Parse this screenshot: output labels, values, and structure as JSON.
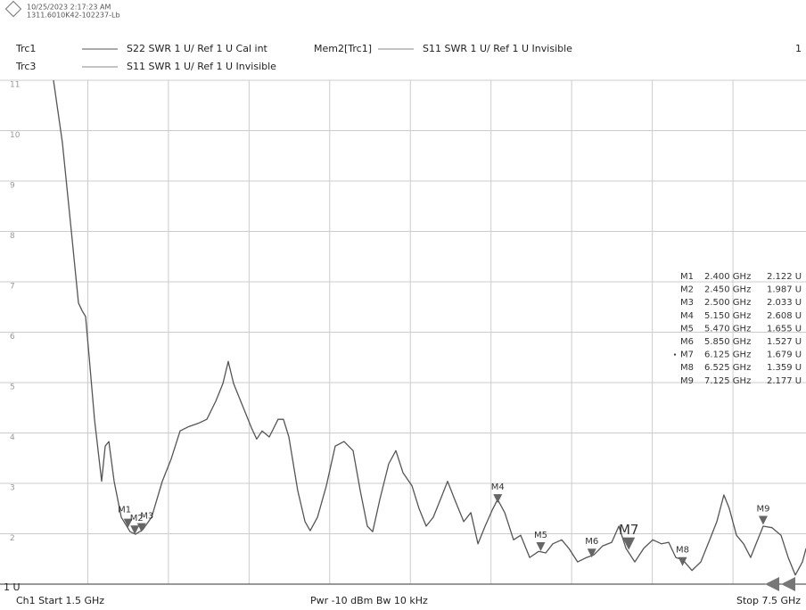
{
  "header": {
    "timestamp": "10/25/2023 2:17:23 AM",
    "device_id": "1311.6010K42-102237-Lb"
  },
  "traces": {
    "trc1_desc": "S22  SWR  1 U/ Ref 1 U  Cal int",
    "mem_name": "Mem2[Trc1]",
    "mem_desc": "S11  SWR  1 U/ Ref 1 U  Invisible",
    "channel_index": "1",
    "trc3_name": "Trc3",
    "trc3_desc": "S11  SWR  1 U/ Ref 1 U  Invisible"
  },
  "footer": {
    "start": "Ch1  Start  1.5 GHz",
    "settings": "Pwr  -10 dBm  Bw  10 kHz",
    "stop": "Stop  7.5 GHz"
  },
  "chart_data": {
    "type": "line",
    "xlim": [
      1.5,
      7.5
    ],
    "xticks": [
      2.1,
      2.7,
      3.3,
      3.9,
      4.5,
      5.1,
      5.7,
      6.3,
      6.9
    ],
    "ylim": [
      1,
      11
    ],
    "yticks": [
      {
        "value": 1,
        "label": "1 U"
      },
      2,
      3,
      4,
      5,
      6,
      7,
      8,
      9,
      10,
      11
    ],
    "grid": true,
    "series": [
      {
        "name": "Trc1",
        "color": "#555555",
        "x": [
          1.845,
          1.911,
          1.978,
          2.031,
          2.057,
          2.084,
          2.11,
          2.15,
          2.203,
          2.23,
          2.257,
          2.296,
          2.349,
          2.415,
          2.455,
          2.508,
          2.575,
          2.654,
          2.72,
          2.787,
          2.853,
          2.92,
          2.986,
          3.052,
          3.105,
          3.145,
          3.185,
          3.238,
          3.318,
          3.357,
          3.397,
          3.45,
          3.516,
          3.556,
          3.596,
          3.662,
          3.716,
          3.755,
          3.809,
          3.875,
          3.941,
          4.007,
          4.074,
          4.127,
          4.18,
          4.22,
          4.273,
          4.339,
          4.392,
          4.445,
          4.512,
          4.565,
          4.618,
          4.671,
          4.737,
          4.777,
          4.83,
          4.897,
          4.95,
          5.003,
          5.056,
          5.109,
          5.149,
          5.202,
          5.268,
          5.321,
          5.388,
          5.454,
          5.507,
          5.56,
          5.626,
          5.679,
          5.745,
          5.812,
          5.865,
          5.931,
          5.998,
          6.051,
          6.104,
          6.17,
          6.236,
          6.303,
          6.369,
          6.422,
          6.475,
          6.528,
          6.595,
          6.661,
          6.727,
          6.78,
          6.833,
          6.873,
          6.926,
          6.979,
          7.032,
          7.072,
          7.125,
          7.191,
          7.258,
          7.311,
          7.364,
          7.417,
          7.444
        ],
        "values": [
          11.0,
          9.76,
          7.99,
          6.58,
          6.43,
          6.31,
          5.51,
          4.27,
          3.04,
          3.74,
          3.83,
          3.04,
          2.33,
          2.04,
          1.99,
          2.08,
          2.33,
          3.04,
          3.48,
          4.04,
          4.13,
          4.19,
          4.27,
          4.63,
          4.98,
          5.42,
          4.98,
          4.63,
          4.1,
          3.88,
          4.04,
          3.92,
          4.27,
          4.27,
          3.92,
          2.86,
          2.24,
          2.06,
          2.33,
          2.95,
          3.74,
          3.83,
          3.65,
          2.86,
          2.15,
          2.04,
          2.68,
          3.39,
          3.65,
          3.21,
          2.95,
          2.5,
          2.15,
          2.33,
          2.77,
          3.04,
          2.68,
          2.24,
          2.42,
          1.8,
          2.15,
          2.47,
          2.68,
          2.42,
          1.88,
          1.97,
          1.53,
          1.65,
          1.62,
          1.8,
          1.88,
          1.71,
          1.44,
          1.53,
          1.58,
          1.76,
          1.83,
          2.15,
          1.71,
          1.44,
          1.71,
          1.88,
          1.8,
          1.83,
          1.53,
          1.48,
          1.27,
          1.44,
          1.88,
          2.24,
          2.77,
          2.5,
          1.97,
          1.8,
          1.53,
          1.8,
          2.15,
          2.12,
          1.97,
          1.53,
          1.18,
          1.44,
          1.71
        ]
      }
    ],
    "markers": [
      {
        "name": "M1",
        "x": 2.4,
        "x_label": "2.400 GHz",
        "y": 2.122,
        "y_label": "2.122 U"
      },
      {
        "name": "M2",
        "x": 2.45,
        "x_label": "2.450 GHz",
        "y": 1.987,
        "y_label": "1.987 U"
      },
      {
        "name": "M3",
        "x": 2.5,
        "x_label": "2.500 GHz",
        "y": 2.033,
        "y_label": "2.033 U"
      },
      {
        "name": "M4",
        "x": 5.15,
        "x_label": "5.150 GHz",
        "y": 2.608,
        "y_label": "2.608 U"
      },
      {
        "name": "M5",
        "x": 5.47,
        "x_label": "5.470 GHz",
        "y": 1.655,
        "y_label": "1.655 U"
      },
      {
        "name": "M6",
        "x": 5.85,
        "x_label": "5.850 GHz",
        "y": 1.527,
        "y_label": "1.527 U"
      },
      {
        "name": "M7",
        "x": 6.125,
        "x_label": "6.125 GHz",
        "y": 1.679,
        "y_label": "1.679 U",
        "active": true
      },
      {
        "name": "M8",
        "x": 6.525,
        "x_label": "6.525 GHz",
        "y": 1.359,
        "y_label": "1.359 U"
      },
      {
        "name": "M9",
        "x": 7.125,
        "x_label": "7.125 GHz",
        "y": 2.177,
        "y_label": "2.177 U"
      }
    ]
  }
}
